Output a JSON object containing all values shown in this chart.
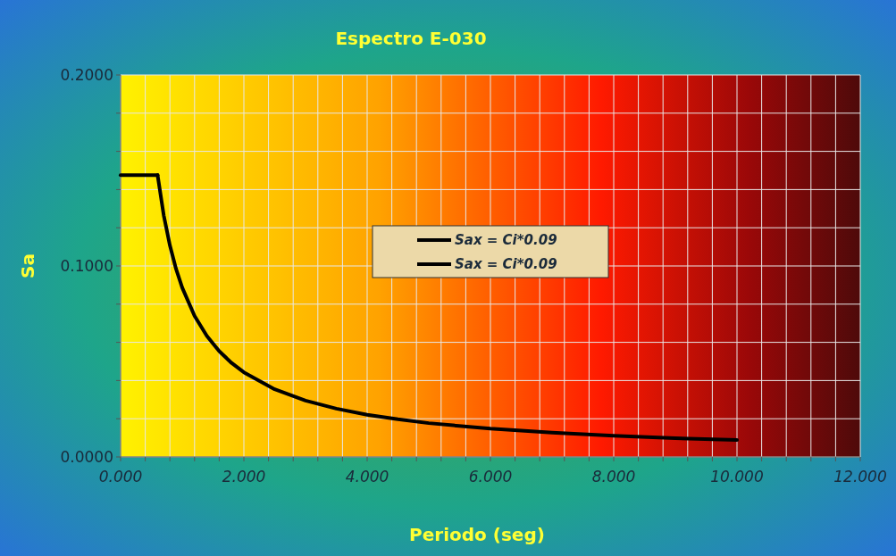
{
  "chart_data": {
    "type": "line",
    "title": "Espectro E-030",
    "xlabel": "Periodo (seg)",
    "ylabel": "Sa",
    "xlim": [
      0,
      12
    ],
    "ylim": [
      0,
      0.2
    ],
    "xticks": [
      {
        "value": 0,
        "label": "0.000"
      },
      {
        "value": 0.4,
        "label": null
      },
      {
        "value": 0.8,
        "label": null
      },
      {
        "value": 1.2,
        "label": null
      },
      {
        "value": 1.6,
        "label": null
      },
      {
        "value": 2,
        "label": "2.000"
      },
      {
        "value": 2.4,
        "label": null
      },
      {
        "value": 2.8,
        "label": null
      },
      {
        "value": 3.2,
        "label": null
      },
      {
        "value": 3.6,
        "label": null
      },
      {
        "value": 4,
        "label": "4.000"
      },
      {
        "value": 4.4,
        "label": null
      },
      {
        "value": 4.8,
        "label": null
      },
      {
        "value": 5.2,
        "label": null
      },
      {
        "value": 5.6,
        "label": null
      },
      {
        "value": 6,
        "label": "6.000"
      },
      {
        "value": 6.4,
        "label": null
      },
      {
        "value": 6.8,
        "label": null
      },
      {
        "value": 7.2,
        "label": null
      },
      {
        "value": 7.6,
        "label": null
      },
      {
        "value": 8,
        "label": "8.000"
      },
      {
        "value": 8.4,
        "label": null
      },
      {
        "value": 8.8,
        "label": null
      },
      {
        "value": 9.2,
        "label": null
      },
      {
        "value": 9.6,
        "label": null
      },
      {
        "value": 10,
        "label": "10.000"
      },
      {
        "value": 10.4,
        "label": null
      },
      {
        "value": 10.8,
        "label": null
      },
      {
        "value": 11.2,
        "label": null
      },
      {
        "value": 11.6,
        "label": null
      },
      {
        "value": 12,
        "label": "12.000"
      }
    ],
    "yticks": [
      {
        "value": 0,
        "label": "0.0000"
      },
      {
        "value": 0.02,
        "label": null
      },
      {
        "value": 0.04,
        "label": null
      },
      {
        "value": 0.06,
        "label": null
      },
      {
        "value": 0.08,
        "label": null
      },
      {
        "value": 0.1,
        "label": "0.1000"
      },
      {
        "value": 0.12,
        "label": null
      },
      {
        "value": 0.14,
        "label": null
      },
      {
        "value": 0.16,
        "label": null
      },
      {
        "value": 0.18,
        "label": null
      },
      {
        "value": 0.2,
        "label": "0.2000"
      }
    ],
    "grid": true,
    "legend": "center",
    "line_style": "solid",
    "series": [
      {
        "name": "Sax = Ci*0.09",
        "color": "#000000",
        "x": [
          0,
          0.6
        ],
        "values": [
          0.1476,
          0.1476
        ]
      },
      {
        "name": "Sax = Ci*0.09",
        "color": "#000000",
        "x": [
          0.6,
          0.7,
          0.8,
          0.9,
          1.0,
          1.2,
          1.4,
          1.6,
          1.8,
          2.0,
          2.5,
          3,
          3.5,
          4,
          4.5,
          5,
          6,
          7,
          8,
          9,
          10
        ],
        "values": [
          0.1476,
          0.1265,
          0.1107,
          0.0984,
          0.0886,
          0.0738,
          0.0633,
          0.0554,
          0.0492,
          0.0443,
          0.0354,
          0.0295,
          0.0253,
          0.0221,
          0.0197,
          0.0177,
          0.0148,
          0.0127,
          0.0111,
          0.0098,
          0.0089
        ]
      }
    ]
  }
}
